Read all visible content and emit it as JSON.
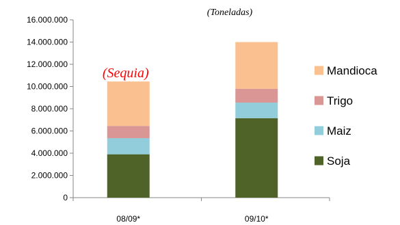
{
  "chart_data": {
    "type": "bar",
    "stacked": true,
    "unit_label": "(Toneladas)",
    "categories": [
      "08/09*",
      "09/10*"
    ],
    "series": [
      {
        "name": "Soja",
        "values": [
          3900000,
          7150000
        ],
        "color": "#4F6228"
      },
      {
        "name": "Maiz",
        "values": [
          1450000,
          1400000
        ],
        "color": "#92CDDC"
      },
      {
        "name": "Trigo",
        "values": [
          1100000,
          1250000
        ],
        "color": "#D99694"
      },
      {
        "name": "Mandioca",
        "values": [
          4000000,
          4200000
        ],
        "color": "#FAC090"
      }
    ],
    "ylim": [
      0,
      16000000
    ],
    "yticks": [
      "0",
      "2.000.000",
      "4.000.000",
      "6.000.000",
      "8.000.000",
      "10.000.000",
      "12.000.000",
      "14.000.000",
      "16.000.000"
    ],
    "annotations": [
      {
        "text": "(Sequia)",
        "category": "08/09*",
        "color": "#FF0000"
      }
    ],
    "legend": {
      "position": "right",
      "order": [
        "Mandioca",
        "Trigo",
        "Maiz",
        "Soja"
      ]
    },
    "grid": false
  }
}
